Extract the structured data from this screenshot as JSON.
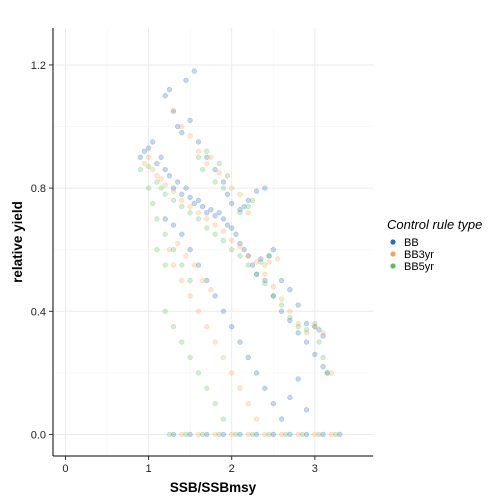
{
  "chart_data": {
    "type": "scatter",
    "title": "",
    "xlabel": "SSB/SSBmsy",
    "ylabel": "relative yield",
    "xlim": [
      -0.15,
      3.7
    ],
    "ylim": [
      -0.07,
      1.32
    ],
    "xticks": [
      0,
      1,
      2,
      3
    ],
    "yticks": [
      0.0,
      0.4,
      0.8,
      1.2
    ],
    "xtick_labels": [
      "0",
      "1",
      "2",
      "3"
    ],
    "ytick_labels": [
      "0.0",
      "0.4",
      "0.8",
      "1.2"
    ],
    "grid": true,
    "legend": {
      "title": "Control rule type",
      "placement": "right"
    },
    "series": [
      {
        "name": "BB",
        "color": "#2b6bb5",
        "points": [
          [
            0.9,
            0.9
          ],
          [
            0.95,
            0.92
          ],
          [
            1.0,
            0.93
          ],
          [
            1.05,
            0.95
          ],
          [
            1.1,
            0.88
          ],
          [
            1.15,
            0.9
          ],
          [
            1.2,
            0.86
          ],
          [
            1.25,
            0.84
          ],
          [
            1.3,
            0.8
          ],
          [
            1.35,
            0.82
          ],
          [
            1.4,
            0.78
          ],
          [
            1.45,
            0.8
          ],
          [
            1.5,
            0.77
          ],
          [
            1.55,
            0.75
          ],
          [
            1.6,
            0.76
          ],
          [
            1.65,
            0.74
          ],
          [
            1.7,
            0.72
          ],
          [
            1.75,
            0.73
          ],
          [
            1.8,
            0.71
          ],
          [
            1.85,
            0.72
          ],
          [
            1.9,
            0.7
          ],
          [
            1.95,
            0.68
          ],
          [
            2.0,
            0.67
          ],
          [
            2.05,
            0.65
          ],
          [
            2.1,
            0.62
          ],
          [
            2.15,
            0.6
          ],
          [
            2.2,
            0.58
          ],
          [
            2.25,
            0.55
          ],
          [
            2.3,
            0.52
          ],
          [
            2.4,
            0.5
          ],
          [
            2.5,
            0.45
          ],
          [
            2.6,
            0.4
          ],
          [
            2.7,
            0.37
          ],
          [
            2.8,
            0.33
          ],
          [
            2.9,
            0.3
          ],
          [
            3.0,
            0.26
          ],
          [
            3.1,
            0.22
          ],
          [
            3.15,
            0.2
          ],
          [
            1.2,
            1.1
          ],
          [
            1.25,
            1.12
          ],
          [
            1.3,
            1.05
          ],
          [
            1.35,
            1.0
          ],
          [
            1.4,
            0.98
          ],
          [
            1.5,
            1.02
          ],
          [
            1.6,
            0.95
          ],
          [
            1.7,
            0.9
          ],
          [
            1.8,
            0.86
          ],
          [
            1.9,
            0.82
          ],
          [
            2.1,
            0.73
          ],
          [
            2.15,
            0.74
          ],
          [
            2.2,
            0.76
          ],
          [
            2.3,
            0.79
          ],
          [
            2.4,
            0.8
          ],
          [
            2.0,
            0.75
          ],
          [
            1.95,
            0.78
          ],
          [
            1.55,
            1.18
          ],
          [
            1.45,
            1.15
          ],
          [
            1.5,
            0.6
          ],
          [
            1.6,
            0.55
          ],
          [
            1.7,
            0.5
          ],
          [
            1.8,
            0.45
          ],
          [
            1.9,
            0.4
          ],
          [
            2.0,
            0.35
          ],
          [
            2.1,
            0.3
          ],
          [
            2.2,
            0.25
          ],
          [
            2.3,
            0.2
          ],
          [
            2.4,
            0.15
          ],
          [
            2.5,
            0.1
          ],
          [
            2.6,
            0.05
          ],
          [
            2.7,
            0.12
          ],
          [
            2.8,
            0.18
          ],
          [
            2.9,
            0.08
          ],
          [
            2.35,
            0.57
          ],
          [
            2.45,
            0.58
          ],
          [
            2.5,
            0.6
          ],
          [
            1.3,
            0.0
          ],
          [
            1.5,
            0.0
          ],
          [
            1.7,
            0.0
          ],
          [
            1.9,
            0.0
          ],
          [
            2.1,
            0.0
          ],
          [
            2.3,
            0.0
          ],
          [
            2.5,
            0.0
          ],
          [
            2.7,
            0.0
          ],
          [
            2.9,
            0.0
          ],
          [
            3.1,
            0.0
          ],
          [
            3.3,
            0.0
          ],
          [
            2.6,
            0.5
          ],
          [
            2.7,
            0.47
          ],
          [
            2.8,
            0.42
          ],
          [
            2.9,
            0.36
          ],
          [
            3.0,
            0.35
          ],
          [
            3.05,
            0.34
          ],
          [
            3.1,
            0.32
          ],
          [
            1.2,
            0.7
          ],
          [
            1.3,
            0.68
          ],
          [
            1.4,
            0.65
          ]
        ]
      },
      {
        "name": "BB3yr",
        "color": "#f2a45a",
        "points": [
          [
            0.95,
            0.88
          ],
          [
            1.0,
            0.9
          ],
          [
            1.05,
            0.86
          ],
          [
            1.1,
            0.84
          ],
          [
            1.15,
            0.83
          ],
          [
            1.2,
            0.81
          ],
          [
            1.3,
            0.79
          ],
          [
            1.4,
            0.76
          ],
          [
            1.5,
            0.74
          ],
          [
            1.6,
            0.72
          ],
          [
            1.7,
            0.7
          ],
          [
            1.8,
            0.68
          ],
          [
            1.9,
            0.66
          ],
          [
            2.0,
            0.63
          ],
          [
            2.1,
            0.61
          ],
          [
            2.2,
            0.58
          ],
          [
            2.3,
            0.56
          ],
          [
            2.4,
            0.52
          ],
          [
            2.5,
            0.48
          ],
          [
            2.6,
            0.44
          ],
          [
            2.7,
            0.4
          ],
          [
            2.8,
            0.36
          ],
          [
            2.9,
            0.33
          ],
          [
            3.0,
            0.35
          ],
          [
            3.1,
            0.33
          ],
          [
            3.2,
            0.2
          ],
          [
            1.3,
            1.05
          ],
          [
            1.4,
            1.0
          ],
          [
            1.5,
            0.97
          ],
          [
            1.6,
            0.92
          ],
          [
            1.7,
            0.88
          ],
          [
            1.75,
            0.9
          ],
          [
            1.85,
            0.85
          ],
          [
            2.0,
            0.8
          ],
          [
            2.1,
            0.78
          ],
          [
            2.2,
            0.72
          ],
          [
            1.3,
            0.55
          ],
          [
            1.4,
            0.5
          ],
          [
            1.5,
            0.45
          ],
          [
            1.6,
            0.4
          ],
          [
            1.7,
            0.35
          ],
          [
            1.8,
            0.3
          ],
          [
            1.9,
            0.25
          ],
          [
            2.0,
            0.2
          ],
          [
            2.1,
            0.15
          ],
          [
            2.2,
            0.1
          ],
          [
            2.3,
            0.05
          ],
          [
            2.45,
            0.56
          ],
          [
            2.55,
            0.57
          ],
          [
            2.4,
            0.55
          ],
          [
            1.25,
            0.6
          ],
          [
            1.35,
            0.62
          ],
          [
            1.45,
            0.58
          ],
          [
            1.55,
            0.55
          ],
          [
            1.65,
            0.5
          ],
          [
            1.75,
            0.47
          ],
          [
            1.4,
            0.0
          ],
          [
            1.6,
            0.0
          ],
          [
            1.8,
            0.0
          ],
          [
            2.0,
            0.0
          ],
          [
            2.2,
            0.0
          ],
          [
            2.4,
            0.0
          ],
          [
            2.6,
            0.0
          ],
          [
            2.8,
            0.0
          ],
          [
            3.0,
            0.0
          ],
          [
            3.2,
            0.0
          ]
        ]
      },
      {
        "name": "BB5yr",
        "color": "#63b95f",
        "points": [
          [
            0.9,
            0.86
          ],
          [
            1.0,
            0.87
          ],
          [
            1.1,
            0.82
          ],
          [
            1.15,
            0.8
          ],
          [
            1.2,
            0.78
          ],
          [
            1.3,
            0.76
          ],
          [
            1.4,
            0.74
          ],
          [
            1.5,
            0.72
          ],
          [
            1.6,
            0.7
          ],
          [
            1.7,
            0.67
          ],
          [
            1.8,
            0.65
          ],
          [
            1.9,
            0.63
          ],
          [
            2.0,
            0.6
          ],
          [
            2.1,
            0.58
          ],
          [
            2.2,
            0.55
          ],
          [
            2.3,
            0.52
          ],
          [
            2.4,
            0.49
          ],
          [
            2.5,
            0.45
          ],
          [
            2.6,
            0.42
          ],
          [
            2.7,
            0.38
          ],
          [
            2.8,
            0.35
          ],
          [
            2.9,
            0.34
          ],
          [
            3.0,
            0.36
          ],
          [
            3.05,
            0.3
          ],
          [
            3.1,
            0.25
          ],
          [
            3.15,
            0.2
          ],
          [
            1.1,
            0.7
          ],
          [
            1.2,
            0.65
          ],
          [
            1.3,
            0.6
          ],
          [
            1.4,
            0.55
          ],
          [
            1.5,
            0.5
          ],
          [
            1.1,
            0.6
          ],
          [
            1.2,
            0.55
          ],
          [
            1.0,
            0.8
          ],
          [
            1.05,
            0.75
          ],
          [
            1.8,
            0.82
          ],
          [
            1.9,
            0.8
          ],
          [
            1.95,
            0.84
          ],
          [
            1.85,
            0.88
          ],
          [
            1.6,
            0.9
          ],
          [
            1.7,
            0.92
          ],
          [
            1.65,
            0.86
          ],
          [
            2.1,
            0.72
          ],
          [
            2.2,
            0.74
          ],
          [
            2.25,
            0.76
          ],
          [
            2.35,
            0.56
          ],
          [
            2.45,
            0.58
          ],
          [
            1.2,
            0.4
          ],
          [
            1.3,
            0.35
          ],
          [
            1.4,
            0.3
          ],
          [
            1.5,
            0.25
          ],
          [
            1.6,
            0.2
          ],
          [
            1.7,
            0.15
          ],
          [
            1.8,
            0.1
          ],
          [
            1.9,
            0.05
          ],
          [
            1.25,
            0.0
          ],
          [
            1.45,
            0.0
          ],
          [
            1.65,
            0.0
          ],
          [
            1.85,
            0.0
          ],
          [
            2.05,
            0.0
          ],
          [
            2.25,
            0.0
          ],
          [
            2.45,
            0.0
          ],
          [
            2.65,
            0.0
          ],
          [
            2.85,
            0.0
          ],
          [
            3.05,
            0.0
          ],
          [
            3.25,
            0.0
          ]
        ]
      }
    ]
  }
}
